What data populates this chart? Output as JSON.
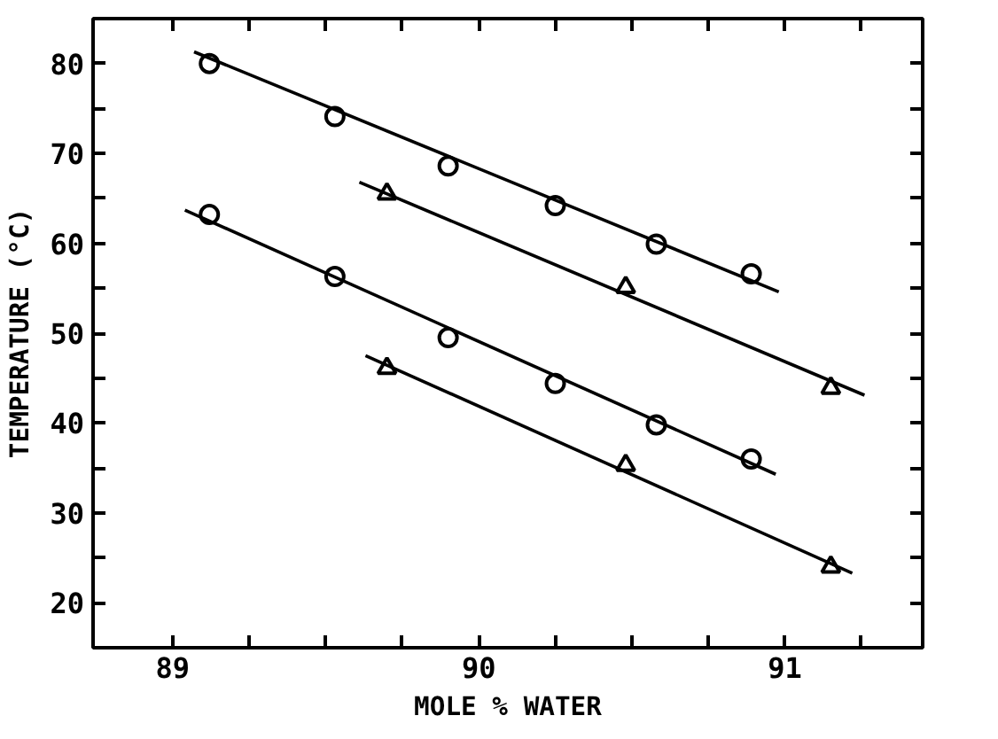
{
  "chart_data": {
    "type": "scatter",
    "xlabel": "MOLE % WATER",
    "ylabel": "TEMPERATURE (°C)",
    "xlim": [
      88.74,
      91.45
    ],
    "ylim": [
      15,
      85
    ],
    "xticks": [
      89,
      {
        "value": 89.25,
        "label": null
      },
      {
        "value": 89.5,
        "label": null
      },
      {
        "value": 89.75,
        "label": null
      },
      90,
      {
        "value": 90.25,
        "label": null
      },
      {
        "value": 90.5,
        "label": null
      },
      {
        "value": 90.75,
        "label": null
      },
      91,
      {
        "value": 91.25,
        "label": null
      }
    ],
    "yticks": [
      20,
      {
        "value": 25,
        "label": null
      },
      30,
      {
        "value": 35,
        "label": null
      },
      40,
      {
        "value": 45,
        "label": null
      },
      50,
      {
        "value": 55,
        "label": null
      },
      60,
      {
        "value": 65,
        "label": null
      },
      70,
      {
        "value": 75,
        "label": null
      },
      80
    ],
    "grid": false,
    "series": [
      {
        "marker": "circle",
        "color": "#000000",
        "x": [
          89.12,
          89.53,
          89.9,
          90.25,
          90.58,
          90.89
        ],
        "values": [
          80.0,
          74.1,
          68.6,
          64.2,
          59.9,
          56.6
        ]
      },
      {
        "marker": "triangle",
        "color": "#000000",
        "x": [
          89.7,
          90.48,
          91.15
        ],
        "values": [
          65.5,
          55.1,
          43.9
        ]
      },
      {
        "marker": "circle",
        "color": "#000000",
        "x": [
          89.12,
          89.53,
          89.9,
          90.25,
          90.58,
          90.89
        ],
        "values": [
          63.2,
          56.3,
          49.5,
          44.4,
          39.8,
          36.0
        ]
      },
      {
        "marker": "triangle",
        "color": "#000000",
        "x": [
          89.7,
          90.48,
          91.15
        ],
        "values": [
          46.1,
          35.3,
          24.0
        ]
      },
      {
        "type": "line",
        "line_style": "solid",
        "color": "#000000",
        "x": [
          89.07,
          90.98
        ],
        "values": [
          81.3,
          54.6
        ]
      },
      {
        "type": "line",
        "line_style": "solid",
        "color": "#000000",
        "x": [
          89.61,
          91.26
        ],
        "values": [
          66.8,
          43.1
        ]
      },
      {
        "type": "line",
        "line_style": "solid",
        "color": "#000000",
        "x": [
          89.04,
          90.97
        ],
        "values": [
          63.7,
          34.3
        ]
      },
      {
        "type": "line",
        "line_style": "solid",
        "color": "#000000",
        "x": [
          89.63,
          91.22
        ],
        "values": [
          47.5,
          23.3
        ]
      }
    ]
  }
}
